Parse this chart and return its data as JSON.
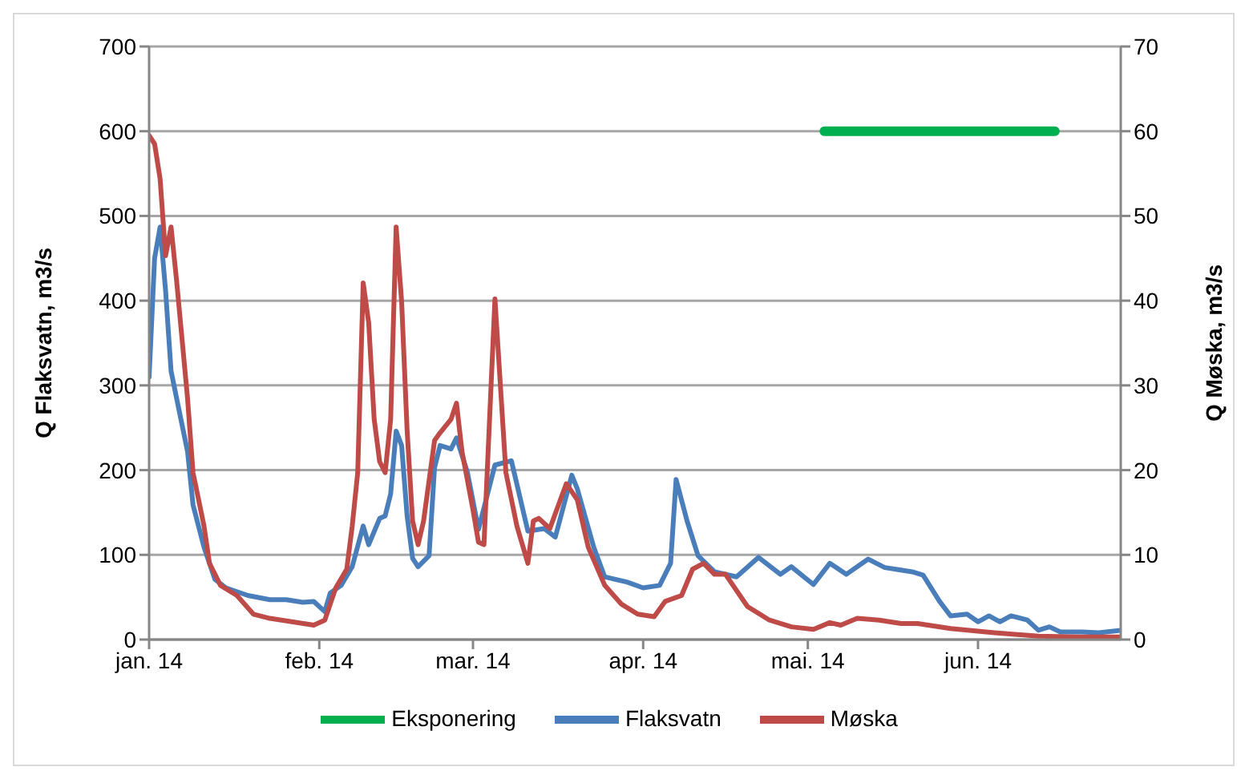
{
  "chart_data": {
    "type": "line",
    "ylabel": "Q Flaksvatn, m3/s",
    "y2label": "Q Møska, m3/s",
    "xlim": [
      "2014-01-01",
      "2014-06-27"
    ],
    "xticks": [
      {
        "value": "2014-01-01",
        "label": "jan. 14"
      },
      {
        "value": "2014-02-01",
        "label": "feb. 14"
      },
      {
        "value": "2014-03-01",
        "label": "mar. 14"
      },
      {
        "value": "2014-04-01",
        "label": "apr. 14"
      },
      {
        "value": "2014-05-01",
        "label": "mai. 14"
      },
      {
        "value": "2014-06-01",
        "label": "jun. 14"
      }
    ],
    "ylim": [
      0,
      700
    ],
    "yticks": [
      0,
      100,
      200,
      300,
      400,
      500,
      600,
      700
    ],
    "y2lim": [
      0,
      70
    ],
    "y2ticks": [
      0,
      10,
      20,
      30,
      40,
      50,
      60,
      70
    ],
    "grid": "y",
    "legend": "bottom",
    "marker": "none",
    "line_style": "solid",
    "series": [
      {
        "name": "Eksponering",
        "color": "#00b050",
        "x": [
          "2014-05-04",
          "2014-06-15"
        ],
        "values": [
          600,
          600
        ]
      },
      {
        "name": "Flaksvatn",
        "color": "#4a7ebb",
        "x": [
          "2014-01-01",
          "2014-01-02",
          "2014-01-03",
          "2014-01-04",
          "2014-01-05",
          "2014-01-06",
          "2014-01-08",
          "2014-01-09",
          "2014-01-11",
          "2014-01-13",
          "2014-01-15",
          "2014-01-19",
          "2014-01-23",
          "2014-01-26",
          "2014-01-29",
          "2014-01-31",
          "2014-02-02",
          "2014-02-03",
          "2014-02-05",
          "2014-02-07",
          "2014-02-09",
          "2014-02-10",
          "2014-02-12",
          "2014-02-13",
          "2014-02-14",
          "2014-02-15",
          "2014-02-16",
          "2014-02-17",
          "2014-02-18",
          "2014-02-19",
          "2014-02-21",
          "2014-02-22",
          "2014-02-23",
          "2014-02-25",
          "2014-02-26",
          "2014-02-28",
          "2014-03-02",
          "2014-03-05",
          "2014-03-08",
          "2014-03-11",
          "2014-03-14",
          "2014-03-16",
          "2014-03-19",
          "2014-03-20",
          "2014-03-23",
          "2014-03-25",
          "2014-03-29",
          "2014-04-01",
          "2014-04-04",
          "2014-04-06",
          "2014-04-07",
          "2014-04-09",
          "2014-04-11",
          "2014-04-14",
          "2014-04-18",
          "2014-04-22",
          "2014-04-26",
          "2014-04-28",
          "2014-05-02",
          "2014-05-05",
          "2014-05-08",
          "2014-05-12",
          "2014-05-15",
          "2014-05-17",
          "2014-05-20",
          "2014-05-22",
          "2014-05-25",
          "2014-05-27",
          "2014-05-30",
          "2014-06-01",
          "2014-06-03",
          "2014-06-05",
          "2014-06-07",
          "2014-06-10",
          "2014-06-12",
          "2014-06-14",
          "2014-06-16",
          "2014-06-20",
          "2014-06-23",
          "2014-06-27"
        ],
        "values": [
          310,
          450,
          487,
          412,
          317,
          285,
          222,
          159,
          109,
          71,
          61,
          52,
          47,
          47,
          44,
          45,
          33,
          55,
          64,
          86,
          134,
          112,
          143,
          146,
          172,
          246,
          229,
          146,
          96,
          86,
          99,
          203,
          229,
          225,
          238,
          197,
          130,
          206,
          211,
          128,
          131,
          121,
          194,
          178,
          109,
          74,
          68,
          61,
          64,
          90,
          189,
          140,
          99,
          80,
          74,
          97,
          77,
          86,
          65,
          90,
          77,
          95,
          85,
          83,
          80,
          76,
          45,
          28,
          30,
          21,
          28,
          21,
          28,
          23,
          11,
          15,
          9,
          9,
          8,
          11
        ]
      },
      {
        "name": "Møska",
        "color": "#be4b48",
        "axis": "y2",
        "x": [
          "2014-01-01",
          "2014-01-02",
          "2014-01-03",
          "2014-01-04",
          "2014-01-05",
          "2014-01-06",
          "2014-01-08",
          "2014-01-09",
          "2014-01-11",
          "2014-01-12",
          "2014-01-14",
          "2014-01-17",
          "2014-01-20",
          "2014-01-23",
          "2014-01-27",
          "2014-01-31",
          "2014-02-02",
          "2014-02-03",
          "2014-02-04",
          "2014-02-06",
          "2014-02-07",
          "2014-02-08",
          "2014-02-09",
          "2014-02-10",
          "2014-02-11",
          "2014-02-12",
          "2014-02-13",
          "2014-02-14",
          "2014-02-15",
          "2014-02-16",
          "2014-02-17",
          "2014-02-18",
          "2014-02-19",
          "2014-02-20",
          "2014-02-22",
          "2014-02-23",
          "2014-02-25",
          "2014-02-26",
          "2014-02-27",
          "2014-03-01",
          "2014-03-02",
          "2014-03-03",
          "2014-03-05",
          "2014-03-07",
          "2014-03-09",
          "2014-03-11",
          "2014-03-12",
          "2014-03-13",
          "2014-03-15",
          "2014-03-18",
          "2014-03-20",
          "2014-03-22",
          "2014-03-25",
          "2014-03-28",
          "2014-03-31",
          "2014-04-03",
          "2014-04-05",
          "2014-04-08",
          "2014-04-10",
          "2014-04-12",
          "2014-04-14",
          "2014-04-16",
          "2014-04-20",
          "2014-04-24",
          "2014-04-28",
          "2014-05-02",
          "2014-05-05",
          "2014-05-07",
          "2014-05-10",
          "2014-05-14",
          "2014-05-18",
          "2014-05-21",
          "2014-05-27",
          "2014-06-04",
          "2014-06-12",
          "2014-06-19",
          "2014-06-27"
        ],
        "values": [
          59.5,
          58.5,
          54.4,
          45.3,
          48.7,
          42.4,
          28.5,
          19.7,
          13.4,
          9.0,
          6.4,
          5.2,
          3.0,
          2.5,
          2.1,
          1.7,
          2.3,
          4.2,
          6.1,
          8.3,
          13.4,
          19.7,
          42.1,
          37.4,
          26.0,
          21.0,
          19.7,
          26.0,
          48.7,
          39.9,
          24.7,
          14.0,
          11.2,
          14.0,
          23.5,
          24.4,
          26.0,
          27.9,
          22.2,
          15.3,
          11.5,
          11.2,
          40.2,
          19.7,
          13.4,
          9.0,
          14.0,
          14.3,
          13.1,
          18.4,
          16.5,
          10.9,
          6.4,
          4.2,
          3.0,
          2.7,
          4.5,
          5.2,
          8.3,
          9.0,
          7.7,
          7.7,
          3.9,
          2.3,
          1.5,
          1.2,
          2.0,
          1.7,
          2.5,
          2.3,
          1.9,
          1.9,
          1.3,
          0.8,
          0.4,
          0.3,
          0.3
        ]
      }
    ]
  }
}
